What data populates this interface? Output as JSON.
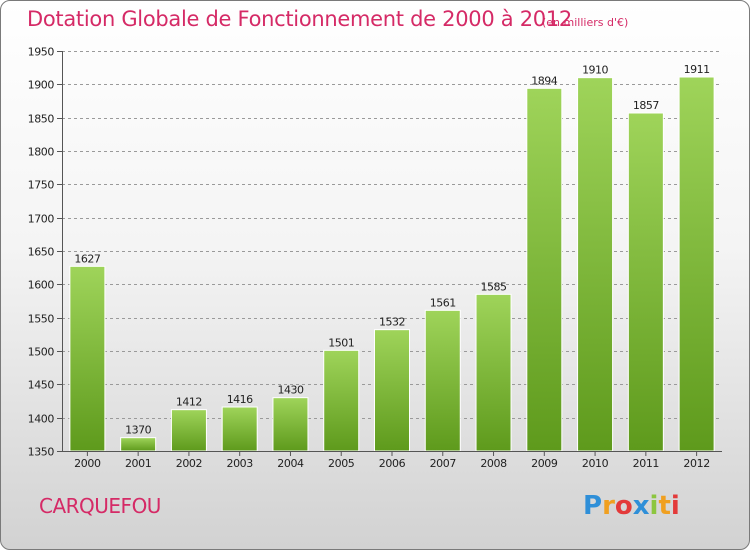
{
  "header": {
    "title": "Dotation Globale de Fonctionnement de 2000 à 2012",
    "subtitle": "(en milliers d'€)"
  },
  "footer": {
    "commune": "CARQUEFOU",
    "logo": {
      "text": "Proxiti",
      "letters": [
        {
          "ch": "P",
          "color": "#2f8fd8"
        },
        {
          "ch": "r",
          "color": "#f0a020"
        },
        {
          "ch": "o",
          "color": "#e33a3a"
        },
        {
          "ch": "x",
          "color": "#2f8fd8"
        },
        {
          "ch": "i",
          "color": "#8cc63f"
        },
        {
          "ch": "t",
          "color": "#f0a020"
        },
        {
          "ch": "i",
          "color": "#e33a3a"
        }
      ]
    }
  },
  "colors": {
    "accent": "#d52a66",
    "bar_light": "#9fd45a",
    "bar_dark": "#5e9a1c",
    "grid": "#9a9a9a",
    "axis_text": "#222222"
  },
  "chart_data": {
    "type": "bar",
    "categories": [
      "2000",
      "2001",
      "2002",
      "2003",
      "2004",
      "2005",
      "2006",
      "2007",
      "2008",
      "2009",
      "2010",
      "2011",
      "2012"
    ],
    "values": [
      1627,
      1370,
      1412,
      1416,
      1430,
      1501,
      1532,
      1561,
      1585,
      1894,
      1910,
      1857,
      1911
    ],
    "value_labels": [
      "1627",
      "1370",
      "1412",
      "1416",
      "1430",
      "1501",
      "1532",
      "1561",
      "1585",
      "1894",
      "1910",
      "1857",
      "1911"
    ],
    "ylim": [
      1350,
      1950
    ],
    "yticks": [
      1350,
      1400,
      1450,
      1500,
      1550,
      1600,
      1650,
      1700,
      1750,
      1800,
      1850,
      1900,
      1950
    ],
    "ytick_labels": [
      "1350",
      "1400",
      "1450",
      "1500",
      "1550",
      "1600",
      "1650",
      "1700",
      "1750",
      "1800",
      "1850",
      "1900",
      "1950"
    ],
    "grid": true,
    "legend": "none"
  }
}
